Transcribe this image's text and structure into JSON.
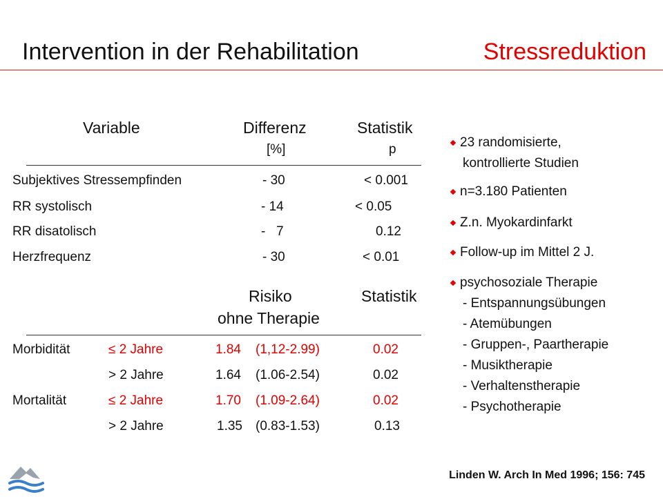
{
  "title": {
    "main": "Intervention in der Rehabilitation",
    "accent": "Stressreduktion"
  },
  "table1": {
    "headers": {
      "variable": "Variable",
      "difference": "Differenz",
      "difference_unit": "[%]",
      "statistic": "Statistik",
      "statistic_unit": "p"
    },
    "rows": [
      {
        "variable": "Subjektives Stressempfinden",
        "diff": "- 30",
        "p": "< 0.001"
      },
      {
        "variable": "RR systolisch",
        "diff": "- 14",
        "p": "< 0.05"
      },
      {
        "variable": "RR disatolisch",
        "diff": "-   7",
        "p": "0.12"
      },
      {
        "variable": "Herzfrequenz",
        "diff": "- 30",
        "p": "< 0.01"
      }
    ]
  },
  "table2": {
    "headers": {
      "risk_line1": "Risiko",
      "risk_line2": "ohne Therapie",
      "statistic": "Statistik"
    },
    "rows": [
      {
        "group": "Morbidität",
        "period": "≤ 2 Jahre",
        "value": "1.84",
        "ci": "(1,12-2.99)",
        "p": "0.02",
        "highlight": true
      },
      {
        "group": "",
        "period": "> 2 Jahre",
        "value": "1.64",
        "ci": "(1.06-2.54)",
        "p": "0.02",
        "highlight": false
      },
      {
        "group": "Mortalität",
        "period": "≤ 2 Jahre",
        "value": "1.70",
        "ci": "(1.09-2.64)",
        "p": "0.02",
        "highlight": true
      },
      {
        "group": "",
        "period": "> 2 Jahre",
        "value": "1.35",
        "ci": "(0.83-1.53)",
        "p": "0.13",
        "highlight": false
      }
    ]
  },
  "bullets": {
    "b1_line1": "23 randomisierte,",
    "b1_line2": "kontrollierte Studien",
    "b2": "n=3.180 Patienten",
    "b3": "Z.n. Myokardinfarkt",
    "b4": "Follow-up im Mittel 2 J.",
    "b5": "psychosoziale Therapie",
    "b5_items": [
      "- Entspannungsübungen",
      "- Atemübungen",
      "- Gruppen-, Paartherapie",
      "- Musiktherapie",
      "- Verhaltenstherapie",
      "- Psychotherapie"
    ]
  },
  "citation": "Linden W. Arch In Med 1996; 156: 745",
  "colors": {
    "accent": "#e00000",
    "logo_blue": "#3a7fc8",
    "logo_grey": "#9aa3ad"
  },
  "logo_icon": "wave-logo-icon"
}
